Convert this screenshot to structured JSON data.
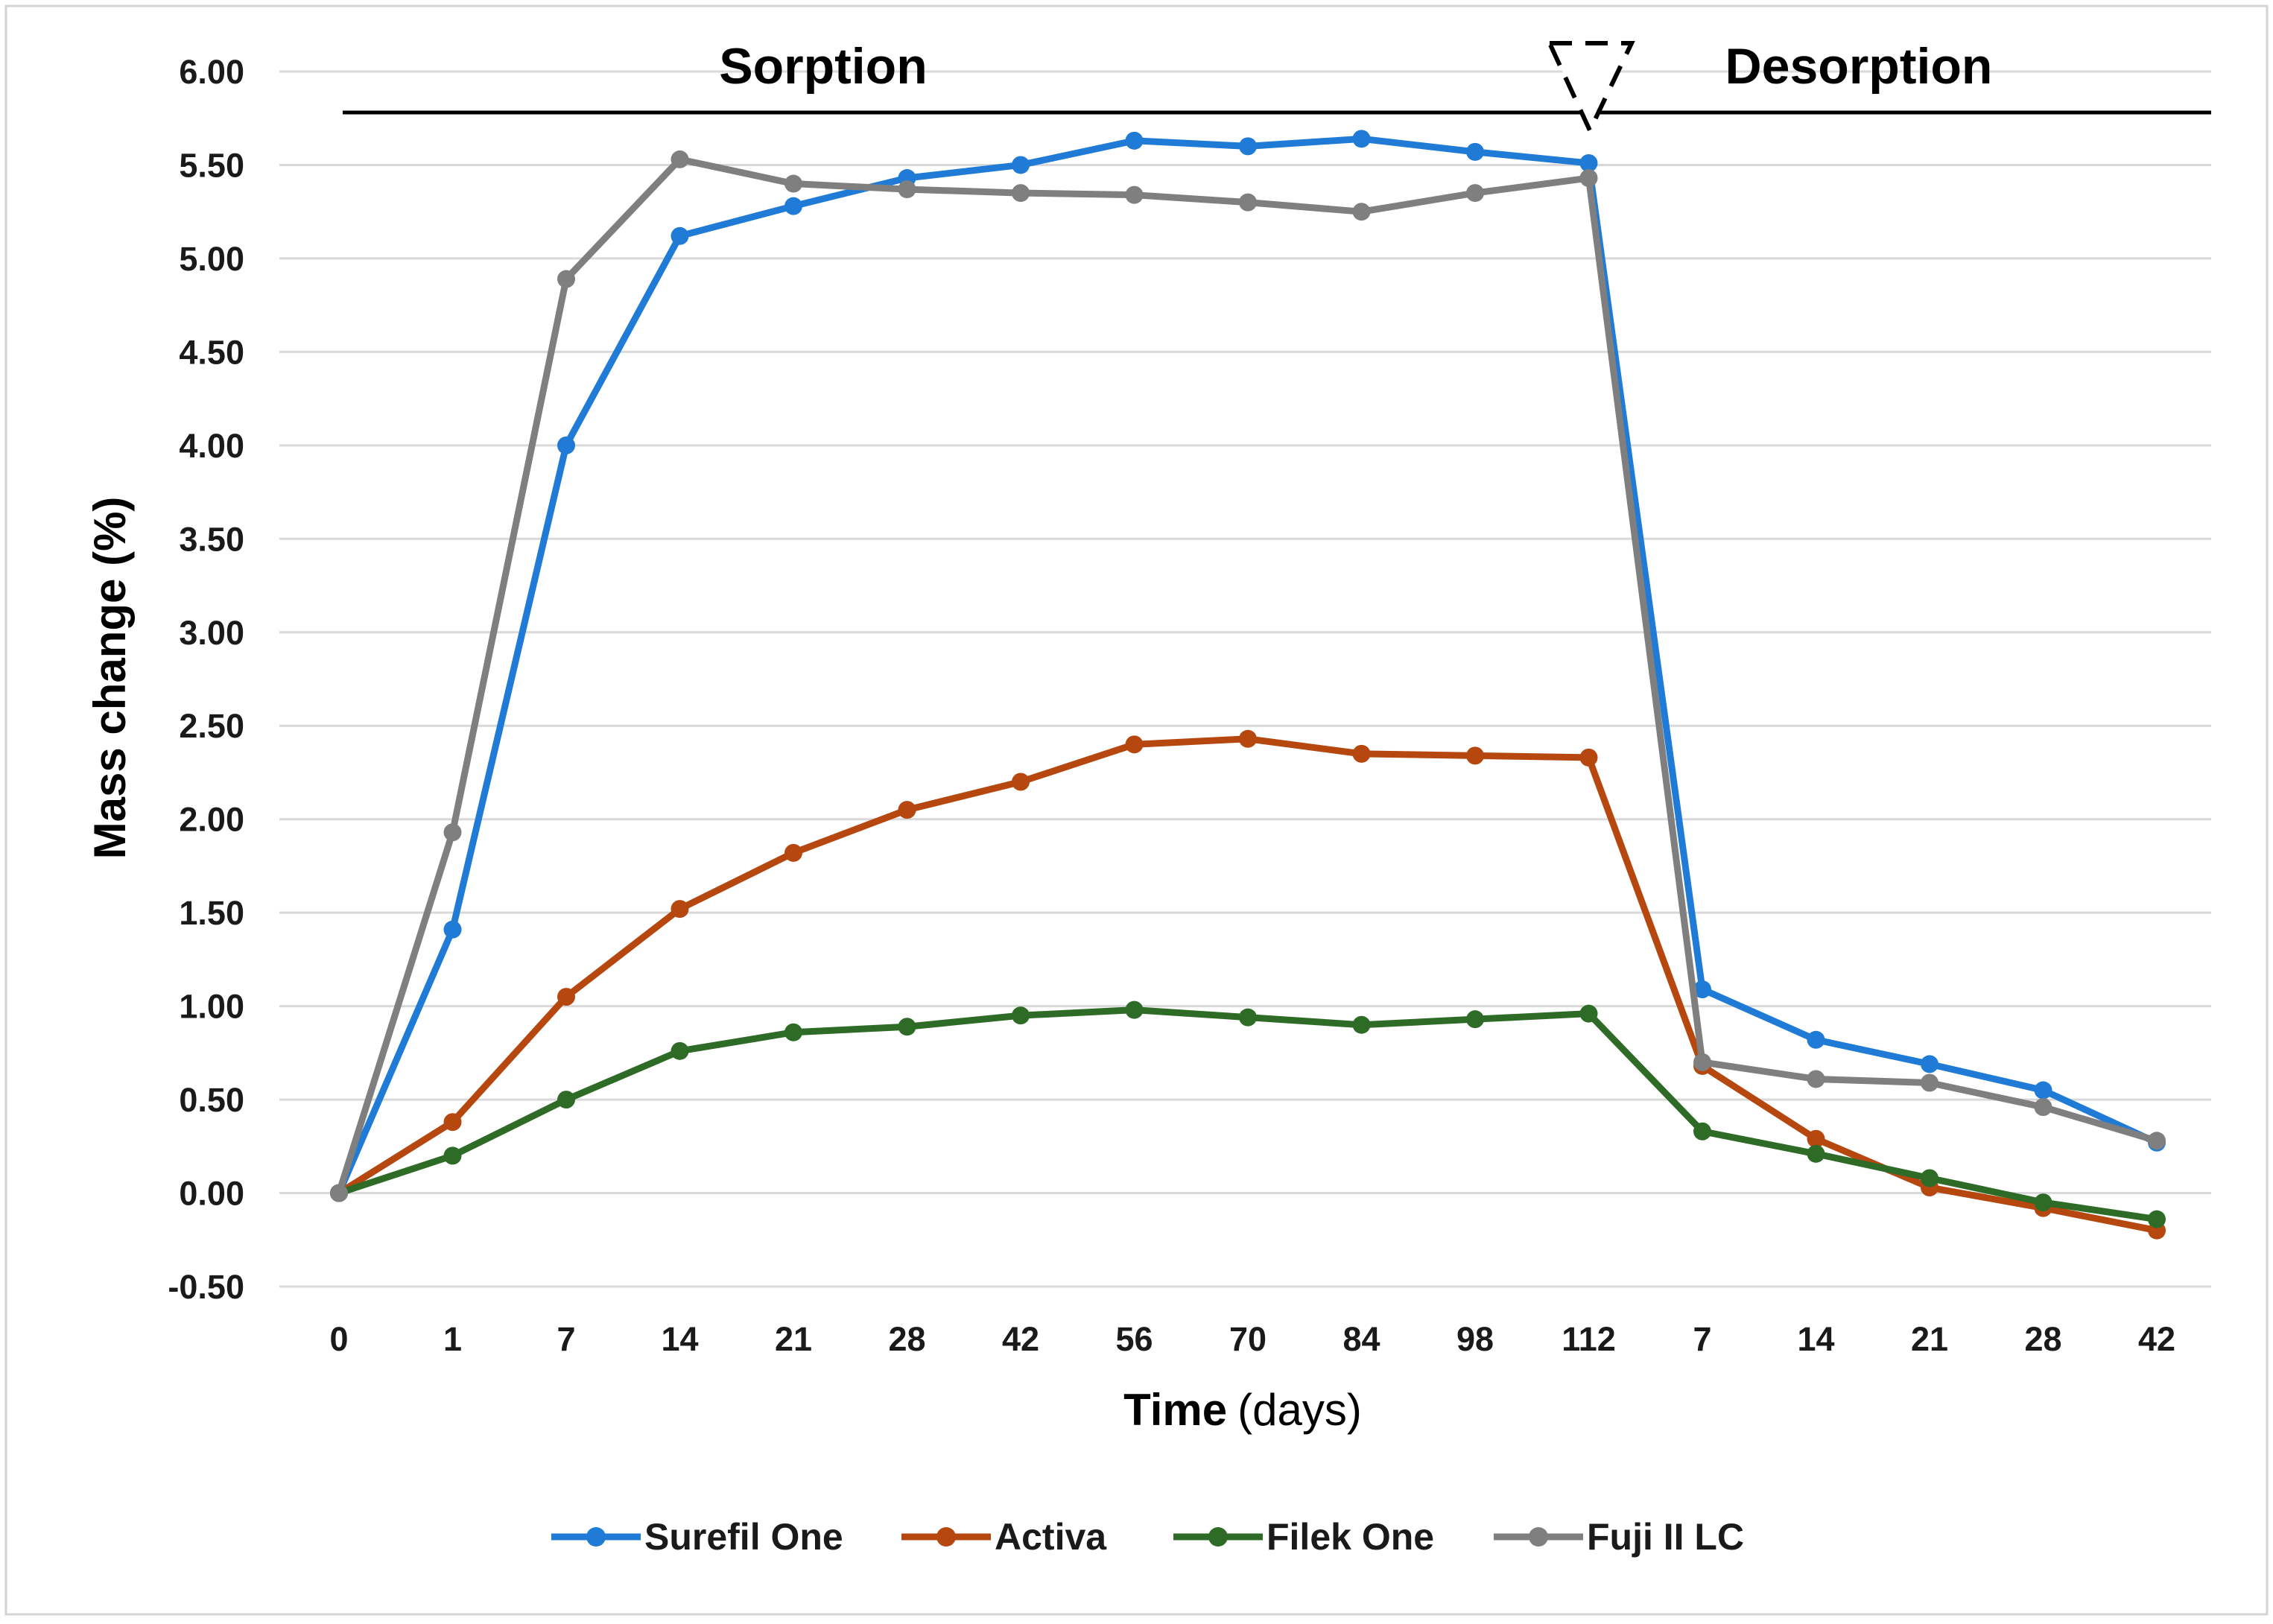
{
  "chart_data": {
    "type": "line",
    "categories": [
      "0",
      "1",
      "7",
      "14",
      "21",
      "28",
      "42",
      "56",
      "70",
      "84",
      "98",
      "112",
      "7",
      "14",
      "21",
      "28",
      "42"
    ],
    "phases": [
      {
        "label": "Sorption",
        "from_index": 0,
        "to_index": 11
      },
      {
        "label": "Desorption",
        "from_index": 11,
        "to_index": 16
      }
    ],
    "xlabel": "Time",
    "xlabel_unit": "(days)",
    "ylabel": "Mass change (%)",
    "ylim": [
      -0.5,
      6.0
    ],
    "ytick_step": 0.5,
    "yticks": [
      "-0.50",
      "0.00",
      "0.50",
      "1.00",
      "1.50",
      "2.00",
      "2.50",
      "3.00",
      "3.50",
      "4.00",
      "4.50",
      "5.00",
      "5.50",
      "6.00"
    ],
    "grid": true,
    "legend_position": "bottom",
    "series": [
      {
        "name": "Surefil One",
        "color": "#1f7bd6",
        "values": [
          0.0,
          1.41,
          4.0,
          5.12,
          5.28,
          5.43,
          5.5,
          5.63,
          5.6,
          5.64,
          5.57,
          5.51,
          1.09,
          0.82,
          0.69,
          0.55,
          0.27
        ]
      },
      {
        "name": "Activa",
        "color": "#b5470f",
        "values": [
          0.0,
          0.38,
          1.05,
          1.52,
          1.82,
          2.05,
          2.2,
          2.4,
          2.43,
          2.35,
          2.34,
          2.33,
          0.68,
          0.29,
          0.03,
          -0.08,
          -0.2
        ]
      },
      {
        "name": "Filek One",
        "color": "#2e6b27",
        "values": [
          0.0,
          0.2,
          0.5,
          0.76,
          0.86,
          0.89,
          0.95,
          0.98,
          0.94,
          0.9,
          0.93,
          0.96,
          0.33,
          0.21,
          0.08,
          -0.05,
          -0.14
        ]
      },
      {
        "name": "Fuji II LC",
        "color": "#7f7f7f",
        "values": [
          0.0,
          1.93,
          4.89,
          5.53,
          5.4,
          5.37,
          5.35,
          5.34,
          5.3,
          5.25,
          5.35,
          5.43,
          0.7,
          0.61,
          0.59,
          0.46,
          0.28
        ]
      }
    ]
  }
}
